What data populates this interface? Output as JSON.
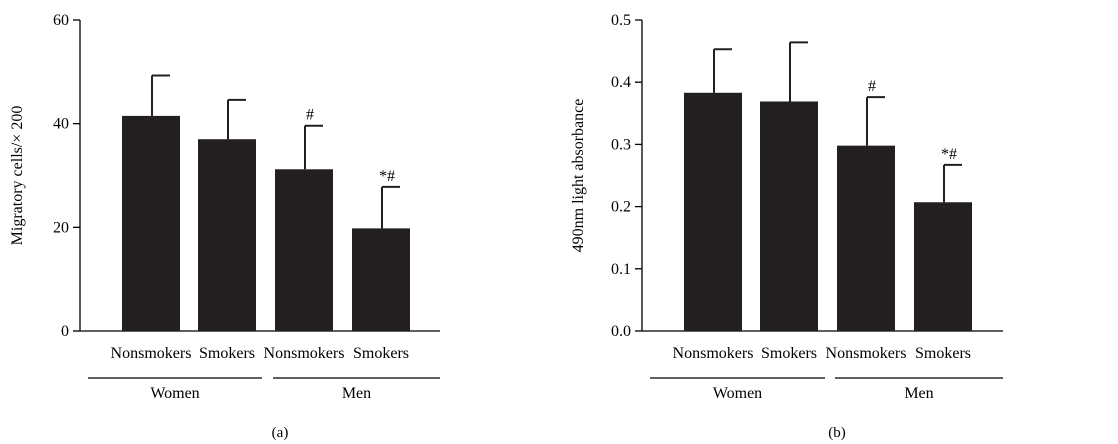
{
  "chart_data": [
    {
      "type": "bar",
      "panel_label": "(a)",
      "ylabel": "Migratory cells/× 200",
      "xlabel": "",
      "ylim": [
        0,
        60
      ],
      "yticks": [
        "0",
        "20",
        "40",
        "60"
      ],
      "ytick_values": [
        0,
        20,
        40,
        60
      ],
      "categories": [
        "Nonsmokers",
        "Smokers",
        "Nonsmokers",
        "Smokers"
      ],
      "groups": [
        {
          "label": "Women",
          "members": [
            0,
            1
          ]
        },
        {
          "label": "Men",
          "members": [
            2,
            3
          ]
        }
      ],
      "values": [
        41.5,
        37,
        31.2,
        19.8
      ],
      "errors": [
        7.8,
        7.6,
        8.4,
        8.0
      ],
      "annotations": [
        "",
        "",
        "#",
        "*#"
      ],
      "bar_color": "#231f20"
    },
    {
      "type": "bar",
      "panel_label": "(b)",
      "ylabel": "490nm light absorbance",
      "xlabel": "",
      "ylim": [
        0,
        0.5
      ],
      "yticks": [
        "0.0",
        "0.1",
        "0.2",
        "0.3",
        "0.4",
        "0.5"
      ],
      "ytick_values": [
        0,
        0.1,
        0.2,
        0.3,
        0.4,
        0.5
      ],
      "categories": [
        "Nonsmokers",
        "Smokers",
        "Nonsmokers",
        "Smokers"
      ],
      "groups": [
        {
          "label": "Women",
          "members": [
            0,
            1
          ]
        },
        {
          "label": "Men",
          "members": [
            2,
            3
          ]
        }
      ],
      "values": [
        0.383,
        0.369,
        0.298,
        0.207
      ],
      "errors": [
        0.07,
        0.095,
        0.078,
        0.06
      ],
      "annotations": [
        "",
        "",
        "#",
        "*#"
      ],
      "bar_color": "#231f20"
    }
  ]
}
